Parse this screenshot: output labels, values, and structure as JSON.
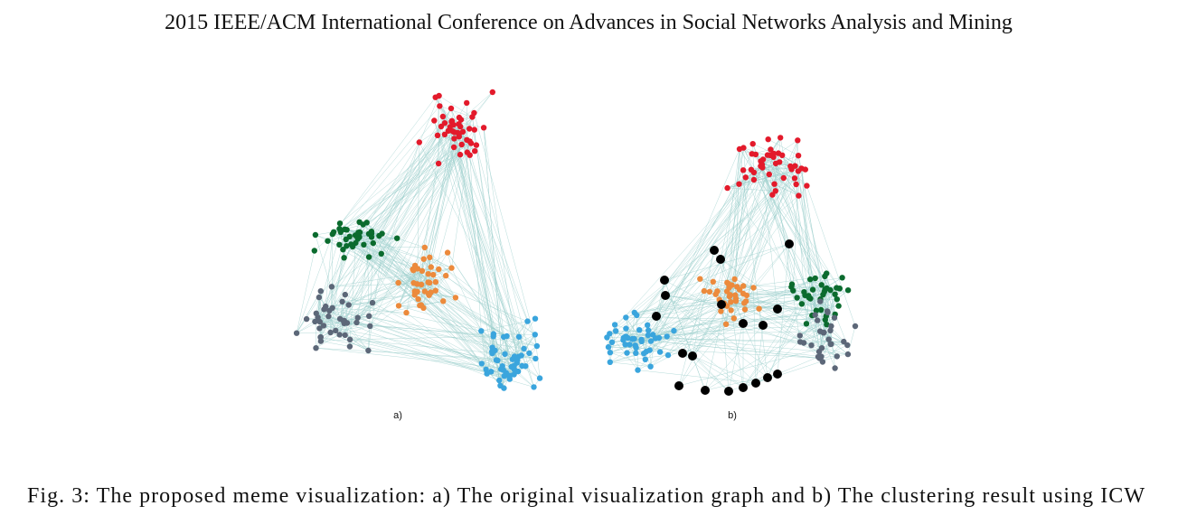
{
  "header": {
    "title": "2015 IEEE/ACM International Conference on Advances in Social Networks Analysis and Mining"
  },
  "figure": {
    "panels": [
      {
        "label": "a)"
      },
      {
        "label": "b)"
      }
    ],
    "caption": "Fig. 3: The proposed meme visualization: a) The original visualization graph and b) The clustering result using ICW"
  }
}
